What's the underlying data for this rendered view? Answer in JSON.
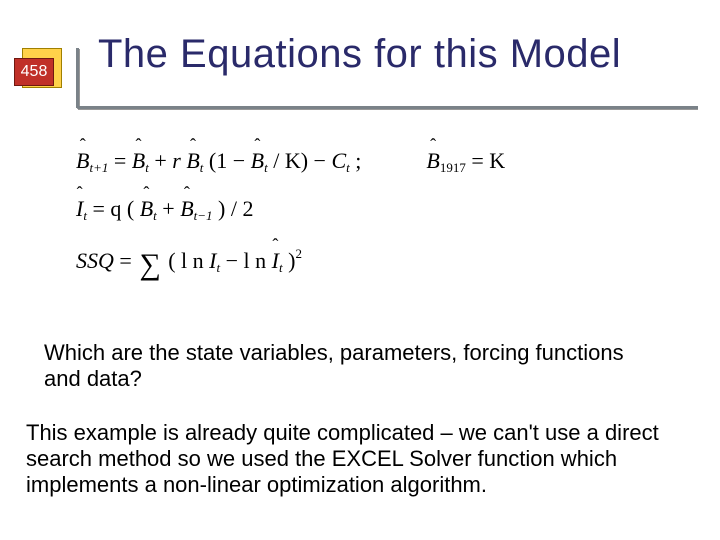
{
  "slide": {
    "page_number": "458",
    "title": "The Equations for this Model",
    "colors": {
      "title_color": "#2a2a6a",
      "rule_color": "#7a8288",
      "badge_yellow": "#ffd24a",
      "badge_red": "#c03028",
      "background": "#ffffff"
    },
    "title_fontsize": 40,
    "body_fontsize": 22,
    "equation_font": "Times New Roman"
  },
  "eq": {
    "line1_lhs_var": "B",
    "line1_lhs_sub": "t+1",
    "line1_rhs_a_var": "B",
    "line1_rhs_a_sub": "t",
    "line1_plus1": " + ",
    "line1_r": "r",
    "line1_rhs_b_var": "B",
    "line1_rhs_b_sub": "t",
    "line1_open": "(1 − ",
    "line1_rhs_c_var": "B",
    "line1_rhs_c_sub": "t",
    "line1_close_k": " / K) − ",
    "line1_C": "C",
    "line1_C_sub": "t",
    "line1_semicolon": " ;",
    "line1_ic_var": "B",
    "line1_ic_sub": "1917",
    "line1_ic_eq": " = K",
    "line2_lhs_var": "I",
    "line2_lhs_sub": "t",
    "line2_eq_q": " = q (",
    "line2_a_var": "B",
    "line2_a_sub": "t",
    "line2_plus": " + ",
    "line2_b_var": "B",
    "line2_b_sub": "t−1",
    "line2_close": ") / 2",
    "line3_ssq": "SSQ",
    "line3_eq": " = ",
    "line3_open": "(",
    "line3_ln1": "l n",
    "line3_I1": "I",
    "line3_I1_sub": "t",
    "line3_minus": " − ",
    "line3_ln2": "l n",
    "line3_I2": "I",
    "line3_I2_sub": "t",
    "line3_close": ")",
    "line3_sq": "2"
  },
  "text": {
    "question": "Which are the state variables, parameters, forcing functions and data?",
    "body": "This example is already quite complicated – we can't use a direct search method so we used the EXCEL Solver function which implements a non-linear optimization algorithm."
  }
}
